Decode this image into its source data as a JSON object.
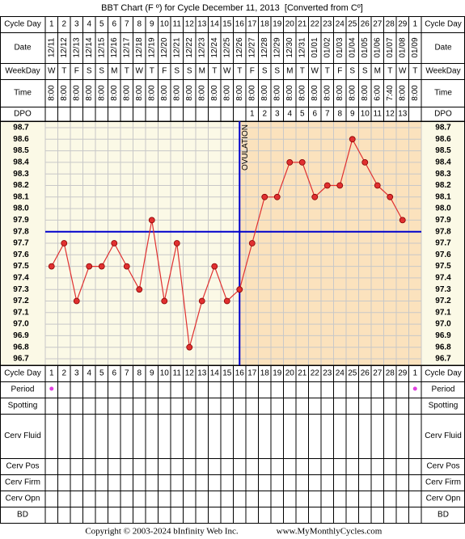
{
  "chart_data": {
    "type": "line",
    "title": "BBT Chart (F º) for Cycle December 11, 2013  [Converted from Cº]",
    "row_labels_top": [
      "Cycle Day",
      "Date",
      "WeekDay",
      "Time",
      "DPO"
    ],
    "row_labels_bottom": [
      "Cycle Day",
      "Period",
      "Spotting",
      "Cerv Fluid",
      "Cerv Pos",
      "Cerv Firm",
      "Cerv Opn",
      "BD"
    ],
    "categories": [
      1,
      2,
      3,
      4,
      5,
      6,
      7,
      8,
      9,
      10,
      11,
      12,
      13,
      14,
      15,
      16,
      17,
      18,
      19,
      20,
      21,
      22,
      23,
      24,
      25,
      26,
      27,
      28,
      29,
      1
    ],
    "dates": [
      "12/11",
      "12/12",
      "12/13",
      "12/14",
      "12/15",
      "12/16",
      "12/17",
      "12/18",
      "12/19",
      "12/20",
      "12/21",
      "12/22",
      "12/23",
      "12/24",
      "12/25",
      "12/26",
      "12/27",
      "12/28",
      "12/29",
      "12/30",
      "12/31",
      "01/01",
      "01/02",
      "01/03",
      "01/04",
      "01/05",
      "01/06",
      "01/07",
      "01/08",
      "01/09"
    ],
    "weekdays": [
      "W",
      "T",
      "F",
      "S",
      "S",
      "M",
      "T",
      "W",
      "T",
      "F",
      "S",
      "S",
      "M",
      "T",
      "W",
      "T",
      "F",
      "S",
      "S",
      "M",
      "T",
      "W",
      "T",
      "F",
      "S",
      "S",
      "M",
      "T",
      "W",
      "T"
    ],
    "times": [
      "8:00",
      "8:00",
      "8:00",
      "8:00",
      "8:00",
      "8:00",
      "8:00",
      "8:00",
      "8:00",
      "8:00",
      "8:00",
      "8:00",
      "8:00",
      "8:00",
      "8:00",
      "8:00",
      "8:00",
      "8:00",
      "8:00",
      "8:00",
      "8:00",
      "8:00",
      "8:00",
      "8:00",
      "8:00",
      "8:00",
      "6:00",
      "7:40",
      "8:00",
      "8:00"
    ],
    "dpo": [
      null,
      null,
      null,
      null,
      null,
      null,
      null,
      null,
      null,
      null,
      null,
      null,
      null,
      null,
      null,
      null,
      1,
      2,
      3,
      4,
      5,
      6,
      7,
      8,
      9,
      10,
      11,
      12,
      13,
      null
    ],
    "series": [
      {
        "color": "#e03030",
        "values": [
          97.5,
          97.7,
          97.2,
          97.5,
          97.5,
          97.7,
          97.5,
          97.3,
          97.9,
          97.2,
          97.7,
          96.8,
          97.2,
          97.5,
          97.2,
          97.3,
          97.7,
          98.1,
          98.1,
          98.4,
          98.4,
          98.1,
          98.2,
          98.2,
          98.6,
          98.4,
          98.2,
          98.1,
          97.9,
          null
        ]
      }
    ],
    "ylim": [
      96.7,
      98.7
    ],
    "yticks": [
      96.7,
      96.8,
      96.9,
      {
        "value": 97,
        "label": "97.0"
      },
      97.1,
      97.2,
      97.3,
      97.4,
      97.5,
      97.6,
      97.7,
      97.8,
      97.9,
      {
        "value": 98,
        "label": "98.0"
      },
      98.1,
      98.2,
      98.3,
      98.4,
      98.5,
      98.6,
      98.7
    ],
    "grid": true,
    "coverline": {
      "value": 97.8,
      "color": "#0000cc"
    },
    "ovulation": {
      "label": "OVULATION",
      "category_index": 15,
      "color": "#0000cc"
    },
    "period": [
      true,
      false,
      false,
      false,
      false,
      false,
      false,
      false,
      false,
      false,
      false,
      false,
      false,
      false,
      false,
      false,
      false,
      false,
      false,
      false,
      false,
      false,
      false,
      false,
      false,
      false,
      false,
      false,
      false,
      true
    ],
    "footer": {
      "copyright": "Copyright © 2003-2024 bInfinity Web Inc.",
      "website": "www.MyMonthlyCycles.com"
    }
  }
}
